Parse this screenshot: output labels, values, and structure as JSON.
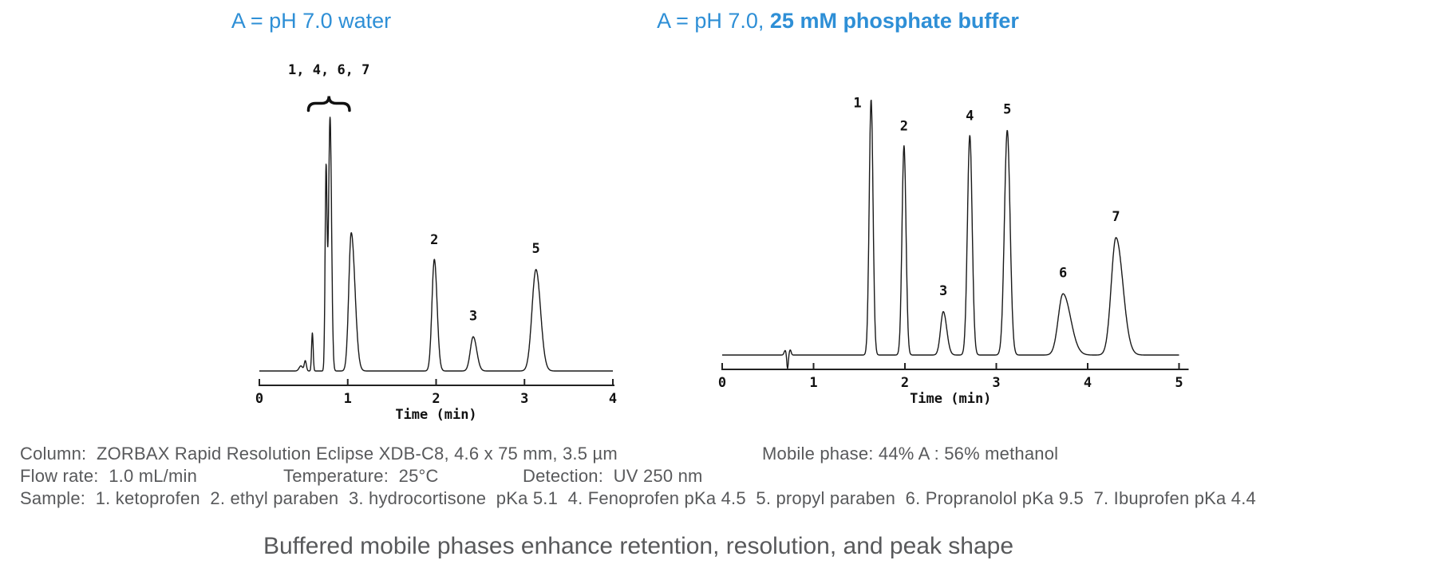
{
  "header": {
    "left_title": "A = pH 7.0 water",
    "right_title_prefix": "A = pH 7.0, ",
    "right_title_bold": "25 mM phosphate buffer"
  },
  "chart_data": [
    {
      "type": "line",
      "title": "A = pH 7.0 water",
      "xlabel": "Time (min)",
      "xlim": [
        0,
        4
      ],
      "xticks": [
        0,
        1,
        2,
        3,
        4
      ],
      "ylabel": "",
      "grid": false,
      "legend": "none",
      "trace_color": "#1a1a1a",
      "cluster_annotation": {
        "label": "1, 4, 6, 7",
        "t_start": 0.555,
        "t_end": 1.02,
        "y": 1.055,
        "label_y": 1.17
      },
      "peaks": [
        {
          "t": 0.47,
          "h": 0.02,
          "w": 0.02
        },
        {
          "t": 0.52,
          "h": 0.04,
          "w": 0.012
        },
        {
          "t": 0.6,
          "h": 0.15,
          "w": 0.009
        },
        {
          "t": 0.755,
          "h": 0.785,
          "w": 0.011
        },
        {
          "t": 0.8,
          "h": 1.0,
          "w": 0.017
        },
        {
          "t": 1.04,
          "h": 0.545,
          "w": 0.028,
          "tail": 1.5
        },
        {
          "t": 1.98,
          "h": 0.44,
          "w": 0.027,
          "tail": 1.15
        },
        {
          "t": 2.42,
          "h": 0.135,
          "w": 0.033,
          "tail": 1.2
        },
        {
          "t": 3.13,
          "h": 0.4,
          "w": 0.045,
          "tail": 1.15
        }
      ],
      "peak_labels": [
        {
          "label": "2",
          "t": 1.98,
          "y": 0.5
        },
        {
          "label": "3",
          "t": 2.42,
          "y": 0.2
        },
        {
          "label": "5",
          "t": 3.13,
          "y": 0.465
        }
      ]
    },
    {
      "type": "line",
      "title": "A = pH 7.0, 25 mM phosphate buffer",
      "xlabel": "Time (min)",
      "xlim": [
        0,
        5
      ],
      "xticks": [
        0,
        1,
        2,
        3,
        4,
        5
      ],
      "ylabel": "",
      "grid": false,
      "legend": "none",
      "trace_color": "#1a1a1a",
      "peaks": [
        {
          "t": 0.69,
          "h": 0.018,
          "w": 0.012
        },
        {
          "t": 0.715,
          "h": -0.055,
          "w": 0.008
        },
        {
          "t": 0.745,
          "h": 0.02,
          "w": 0.01
        },
        {
          "t": 1.63,
          "h": 1.0,
          "w": 0.021
        },
        {
          "t": 1.99,
          "h": 0.82,
          "w": 0.022
        },
        {
          "t": 2.42,
          "h": 0.17,
          "w": 0.03,
          "tail": 1.25
        },
        {
          "t": 2.71,
          "h": 0.86,
          "w": 0.026
        },
        {
          "t": 3.12,
          "h": 0.88,
          "w": 0.031
        },
        {
          "t": 3.73,
          "h": 0.24,
          "w": 0.052,
          "tail": 1.6
        },
        {
          "t": 4.31,
          "h": 0.46,
          "w": 0.052,
          "tail": 1.45
        }
      ],
      "peak_labels": [
        {
          "label": "1",
          "t": 1.48,
          "y": 0.97
        },
        {
          "label": "2",
          "t": 1.99,
          "y": 0.88
        },
        {
          "label": "3",
          "t": 2.42,
          "y": 0.235
        },
        {
          "label": "4",
          "t": 2.71,
          "y": 0.92
        },
        {
          "label": "5",
          "t": 3.12,
          "y": 0.945
        },
        {
          "label": "6",
          "t": 3.73,
          "y": 0.305
        },
        {
          "label": "7",
          "t": 4.31,
          "y": 0.525
        }
      ]
    }
  ],
  "conditions": {
    "column": "Column:  ZORBAX Rapid Resolution Eclipse XDB-C8, 4.6 x 75 mm, 3.5 µm",
    "mobile_phase": "Mobile phase: 44% A : 56% methanol",
    "flow_rate": "Flow rate:  1.0 mL/min",
    "temperature": "Temperature:  25°C",
    "detection": "Detection:  UV 250 nm",
    "sample": "Sample:  1. ketoprofen  2. ethyl paraben  3. hydrocortisone  pKa 5.1  4. Fenoprofen pKa 4.5  5. propyl paraben  6. Propranolol pKa 9.5  7. Ibuprofen pKa 4.4"
  },
  "caption": "Buffered mobile phases enhance retention, resolution, and peak shape",
  "colors": {
    "accent_blue": "#2e8fd6",
    "body_text": "#58595b",
    "caption_text": "#58595b",
    "trace": "#1a1a1a"
  }
}
